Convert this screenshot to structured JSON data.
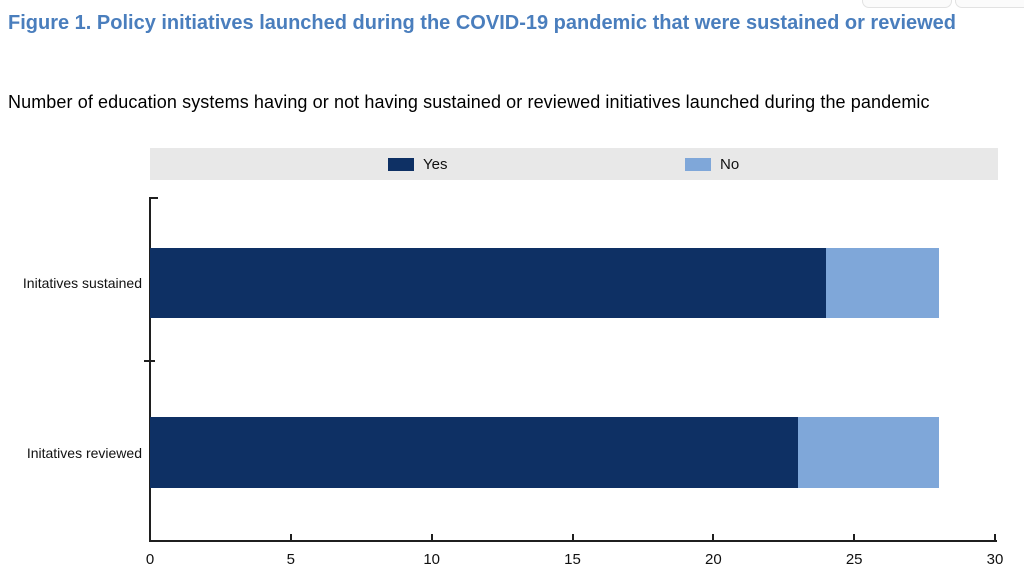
{
  "page": {
    "title": "Figure 1. Policy initiatives launched during the COVID-19 pandemic that were sustained or reviewed",
    "subtitle": "Number of education systems having or not having sustained or reviewed initiatives launched during the pandemic"
  },
  "colors": {
    "title_blue": "#4a7ebd",
    "legend_background": "#e8e8e8",
    "axis": "#1f1f1f",
    "series_yes": "#0e3064",
    "series_no": "#7fa7d9"
  },
  "chart_data": {
    "type": "bar",
    "orientation": "horizontal",
    "stacked": true,
    "title": "Figure 1. Policy initiatives launched during the COVID-19 pandemic that were sustained or reviewed",
    "subtitle": "Number of education systems having or not having sustained or reviewed initiatives launched during the pandemic",
    "categories": [
      "Initatives sustained",
      "Initatives reviewed"
    ],
    "series": [
      {
        "name": "Yes",
        "values": [
          24,
          23
        ],
        "color": "#0e3064"
      },
      {
        "name": "No",
        "values": [
          4,
          5
        ],
        "color": "#7fa7d9"
      }
    ],
    "totals": [
      28,
      28
    ],
    "xlabel": "",
    "ylabel": "",
    "xlim": [
      0,
      30
    ],
    "x_ticks": [
      0,
      5,
      10,
      15,
      20,
      25,
      30
    ],
    "grid": false,
    "legend_position": "top"
  }
}
